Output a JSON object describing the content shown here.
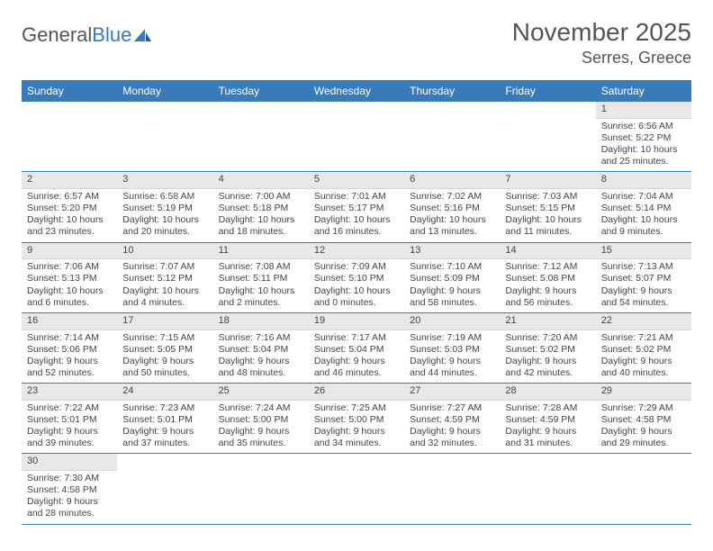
{
  "logo": {
    "general": "General",
    "blue": "Blue"
  },
  "title": {
    "month_year": "November 2025",
    "location": "Serres, Greece"
  },
  "colors": {
    "header_bg": "#3b7ab8",
    "header_text": "#ffffff",
    "daynum_bg": "#e8e8e8",
    "row_divider": "#3b7ab8",
    "body_text": "#444444",
    "title_text": "#555555",
    "page_bg": "#ffffff"
  },
  "weekdays": [
    "Sunday",
    "Monday",
    "Tuesday",
    "Wednesday",
    "Thursday",
    "Friday",
    "Saturday"
  ],
  "weeks": [
    [
      null,
      null,
      null,
      null,
      null,
      null,
      {
        "n": "1",
        "sunrise": "Sunrise: 6:56 AM",
        "sunset": "Sunset: 5:22 PM",
        "daylight": "Daylight: 10 hours and 25 minutes."
      }
    ],
    [
      {
        "n": "2",
        "sunrise": "Sunrise: 6:57 AM",
        "sunset": "Sunset: 5:20 PM",
        "daylight": "Daylight: 10 hours and 23 minutes."
      },
      {
        "n": "3",
        "sunrise": "Sunrise: 6:58 AM",
        "sunset": "Sunset: 5:19 PM",
        "daylight": "Daylight: 10 hours and 20 minutes."
      },
      {
        "n": "4",
        "sunrise": "Sunrise: 7:00 AM",
        "sunset": "Sunset: 5:18 PM",
        "daylight": "Daylight: 10 hours and 18 minutes."
      },
      {
        "n": "5",
        "sunrise": "Sunrise: 7:01 AM",
        "sunset": "Sunset: 5:17 PM",
        "daylight": "Daylight: 10 hours and 16 minutes."
      },
      {
        "n": "6",
        "sunrise": "Sunrise: 7:02 AM",
        "sunset": "Sunset: 5:16 PM",
        "daylight": "Daylight: 10 hours and 13 minutes."
      },
      {
        "n": "7",
        "sunrise": "Sunrise: 7:03 AM",
        "sunset": "Sunset: 5:15 PM",
        "daylight": "Daylight: 10 hours and 11 minutes."
      },
      {
        "n": "8",
        "sunrise": "Sunrise: 7:04 AM",
        "sunset": "Sunset: 5:14 PM",
        "daylight": "Daylight: 10 hours and 9 minutes."
      }
    ],
    [
      {
        "n": "9",
        "sunrise": "Sunrise: 7:06 AM",
        "sunset": "Sunset: 5:13 PM",
        "daylight": "Daylight: 10 hours and 6 minutes."
      },
      {
        "n": "10",
        "sunrise": "Sunrise: 7:07 AM",
        "sunset": "Sunset: 5:12 PM",
        "daylight": "Daylight: 10 hours and 4 minutes."
      },
      {
        "n": "11",
        "sunrise": "Sunrise: 7:08 AM",
        "sunset": "Sunset: 5:11 PM",
        "daylight": "Daylight: 10 hours and 2 minutes."
      },
      {
        "n": "12",
        "sunrise": "Sunrise: 7:09 AM",
        "sunset": "Sunset: 5:10 PM",
        "daylight": "Daylight: 10 hours and 0 minutes."
      },
      {
        "n": "13",
        "sunrise": "Sunrise: 7:10 AM",
        "sunset": "Sunset: 5:09 PM",
        "daylight": "Daylight: 9 hours and 58 minutes."
      },
      {
        "n": "14",
        "sunrise": "Sunrise: 7:12 AM",
        "sunset": "Sunset: 5:08 PM",
        "daylight": "Daylight: 9 hours and 56 minutes."
      },
      {
        "n": "15",
        "sunrise": "Sunrise: 7:13 AM",
        "sunset": "Sunset: 5:07 PM",
        "daylight": "Daylight: 9 hours and 54 minutes."
      }
    ],
    [
      {
        "n": "16",
        "sunrise": "Sunrise: 7:14 AM",
        "sunset": "Sunset: 5:06 PM",
        "daylight": "Daylight: 9 hours and 52 minutes."
      },
      {
        "n": "17",
        "sunrise": "Sunrise: 7:15 AM",
        "sunset": "Sunset: 5:05 PM",
        "daylight": "Daylight: 9 hours and 50 minutes."
      },
      {
        "n": "18",
        "sunrise": "Sunrise: 7:16 AM",
        "sunset": "Sunset: 5:04 PM",
        "daylight": "Daylight: 9 hours and 48 minutes."
      },
      {
        "n": "19",
        "sunrise": "Sunrise: 7:17 AM",
        "sunset": "Sunset: 5:04 PM",
        "daylight": "Daylight: 9 hours and 46 minutes."
      },
      {
        "n": "20",
        "sunrise": "Sunrise: 7:19 AM",
        "sunset": "Sunset: 5:03 PM",
        "daylight": "Daylight: 9 hours and 44 minutes."
      },
      {
        "n": "21",
        "sunrise": "Sunrise: 7:20 AM",
        "sunset": "Sunset: 5:02 PM",
        "daylight": "Daylight: 9 hours and 42 minutes."
      },
      {
        "n": "22",
        "sunrise": "Sunrise: 7:21 AM",
        "sunset": "Sunset: 5:02 PM",
        "daylight": "Daylight: 9 hours and 40 minutes."
      }
    ],
    [
      {
        "n": "23",
        "sunrise": "Sunrise: 7:22 AM",
        "sunset": "Sunset: 5:01 PM",
        "daylight": "Daylight: 9 hours and 39 minutes."
      },
      {
        "n": "24",
        "sunrise": "Sunrise: 7:23 AM",
        "sunset": "Sunset: 5:01 PM",
        "daylight": "Daylight: 9 hours and 37 minutes."
      },
      {
        "n": "25",
        "sunrise": "Sunrise: 7:24 AM",
        "sunset": "Sunset: 5:00 PM",
        "daylight": "Daylight: 9 hours and 35 minutes."
      },
      {
        "n": "26",
        "sunrise": "Sunrise: 7:25 AM",
        "sunset": "Sunset: 5:00 PM",
        "daylight": "Daylight: 9 hours and 34 minutes."
      },
      {
        "n": "27",
        "sunrise": "Sunrise: 7:27 AM",
        "sunset": "Sunset: 4:59 PM",
        "daylight": "Daylight: 9 hours and 32 minutes."
      },
      {
        "n": "28",
        "sunrise": "Sunrise: 7:28 AM",
        "sunset": "Sunset: 4:59 PM",
        "daylight": "Daylight: 9 hours and 31 minutes."
      },
      {
        "n": "29",
        "sunrise": "Sunrise: 7:29 AM",
        "sunset": "Sunset: 4:58 PM",
        "daylight": "Daylight: 9 hours and 29 minutes."
      }
    ],
    [
      {
        "n": "30",
        "sunrise": "Sunrise: 7:30 AM",
        "sunset": "Sunset: 4:58 PM",
        "daylight": "Daylight: 9 hours and 28 minutes."
      },
      null,
      null,
      null,
      null,
      null,
      null
    ]
  ]
}
